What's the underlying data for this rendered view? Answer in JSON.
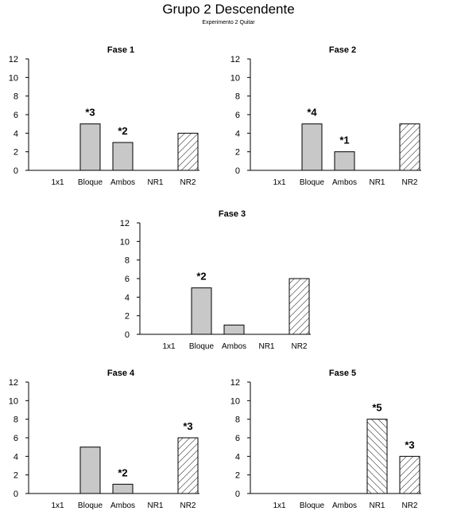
{
  "title": "Grupo 2 Descendente",
  "subtitle": "Experimento 2 Quitar",
  "colors": {
    "solid_fill": "#c8c8c8",
    "hatch_fill": "#ffffff",
    "stroke": "#000000"
  },
  "chart_data": [
    {
      "type": "bar",
      "title": "Fase 1",
      "categories": [
        "1x1",
        "Bloque",
        "Ambos",
        "NR1",
        "NR2"
      ],
      "values": [
        0,
        5,
        3,
        0,
        4
      ],
      "fill_styles": [
        "solid",
        "solid",
        "solid",
        "hatch-forward",
        "hatch-forward"
      ],
      "annotations": [
        "",
        "*3",
        "*2",
        "",
        ""
      ],
      "yticks": [
        0,
        2,
        4,
        6,
        8,
        10,
        12
      ],
      "ylim": [
        0,
        12
      ]
    },
    {
      "type": "bar",
      "title": "Fase 2",
      "categories": [
        "1x1",
        "Bloque",
        "Ambos",
        "NR1",
        "NR2"
      ],
      "values": [
        0,
        5,
        2,
        0,
        5
      ],
      "fill_styles": [
        "solid",
        "solid",
        "solid",
        "hatch-forward",
        "hatch-forward"
      ],
      "annotations": [
        "",
        "*4",
        "*1",
        "",
        ""
      ],
      "yticks": [
        0,
        2,
        4,
        6,
        8,
        10,
        12
      ],
      "ylim": [
        0,
        12
      ]
    },
    {
      "type": "bar",
      "title": "Fase 3",
      "categories": [
        "1x1",
        "Bloque",
        "Ambos",
        "NR1",
        "NR2"
      ],
      "values": [
        0,
        5,
        1,
        0,
        6
      ],
      "fill_styles": [
        "solid",
        "solid",
        "solid",
        "hatch-forward",
        "hatch-forward"
      ],
      "annotations": [
        "",
        "*2",
        "",
        "",
        ""
      ],
      "yticks": [
        0,
        2,
        4,
        6,
        8,
        10,
        12
      ],
      "ylim": [
        0,
        12
      ]
    },
    {
      "type": "bar",
      "title": "Fase 4",
      "categories": [
        "1x1",
        "Bloque",
        "Ambos",
        "NR1",
        "NR2"
      ],
      "values": [
        0,
        5,
        1,
        0,
        6
      ],
      "fill_styles": [
        "solid",
        "solid",
        "solid",
        "hatch-forward",
        "hatch-forward"
      ],
      "annotations": [
        "",
        "",
        "*2",
        "",
        "*3"
      ],
      "yticks": [
        0,
        2,
        4,
        6,
        8,
        10,
        12
      ],
      "ylim": [
        0,
        12
      ]
    },
    {
      "type": "bar",
      "title": "Fase 5",
      "categories": [
        "1x1",
        "Bloque",
        "Ambos",
        "NR1",
        "NR2"
      ],
      "values": [
        0,
        0,
        0,
        8,
        4
      ],
      "fill_styles": [
        "solid",
        "solid",
        "solid",
        "hatch-back",
        "hatch-forward"
      ],
      "annotations": [
        "",
        "",
        "",
        "*5",
        "*3"
      ],
      "yticks": [
        0,
        2,
        4,
        6,
        8,
        10,
        12
      ],
      "ylim": [
        0,
        12
      ]
    }
  ]
}
